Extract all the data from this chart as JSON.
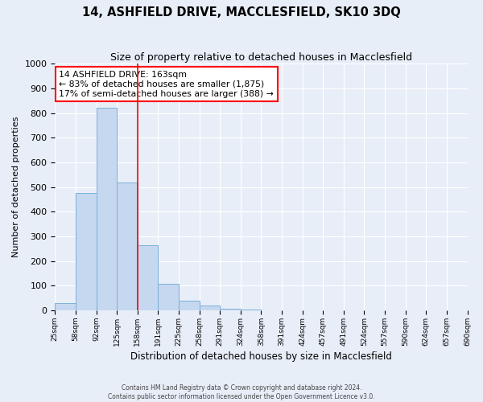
{
  "title": "14, ASHFIELD DRIVE, MACCLESFIELD, SK10 3DQ",
  "subtitle": "Size of property relative to detached houses in Macclesfield",
  "xlabel": "Distribution of detached houses by size in Macclesfield",
  "ylabel": "Number of detached properties",
  "footer_line1": "Contains HM Land Registry data © Crown copyright and database right 2024.",
  "footer_line2": "Contains public sector information licensed under the Open Government Licence v3.0.",
  "bin_labels": [
    "25sqm",
    "58sqm",
    "92sqm",
    "125sqm",
    "158sqm",
    "191sqm",
    "225sqm",
    "258sqm",
    "291sqm",
    "324sqm",
    "358sqm",
    "391sqm",
    "424sqm",
    "457sqm",
    "491sqm",
    "524sqm",
    "557sqm",
    "590sqm",
    "624sqm",
    "657sqm",
    "690sqm"
  ],
  "bar_values": [
    28,
    477,
    820,
    517,
    265,
    109,
    40,
    20,
    8,
    5,
    0,
    0,
    0,
    0,
    0,
    0,
    0,
    0,
    0,
    0
  ],
  "bar_color": "#c5d8f0",
  "bar_edge_color": "#7ab0d8",
  "vline_x": 4.0,
  "vline_color": "red",
  "annotation_title": "14 ASHFIELD DRIVE: 163sqm",
  "annotation_line1": "← 83% of detached houses are smaller (1,875)",
  "annotation_line2": "17% of semi-detached houses are larger (388) →",
  "annotation_box_color": "white",
  "annotation_border_color": "red",
  "ylim": [
    0,
    1000
  ],
  "yticks": [
    0,
    100,
    200,
    300,
    400,
    500,
    600,
    700,
    800,
    900,
    1000
  ],
  "background_color": "#e8eef8",
  "plot_background": "#e8eef8",
  "grid_color": "white",
  "n_total_bins": 20
}
